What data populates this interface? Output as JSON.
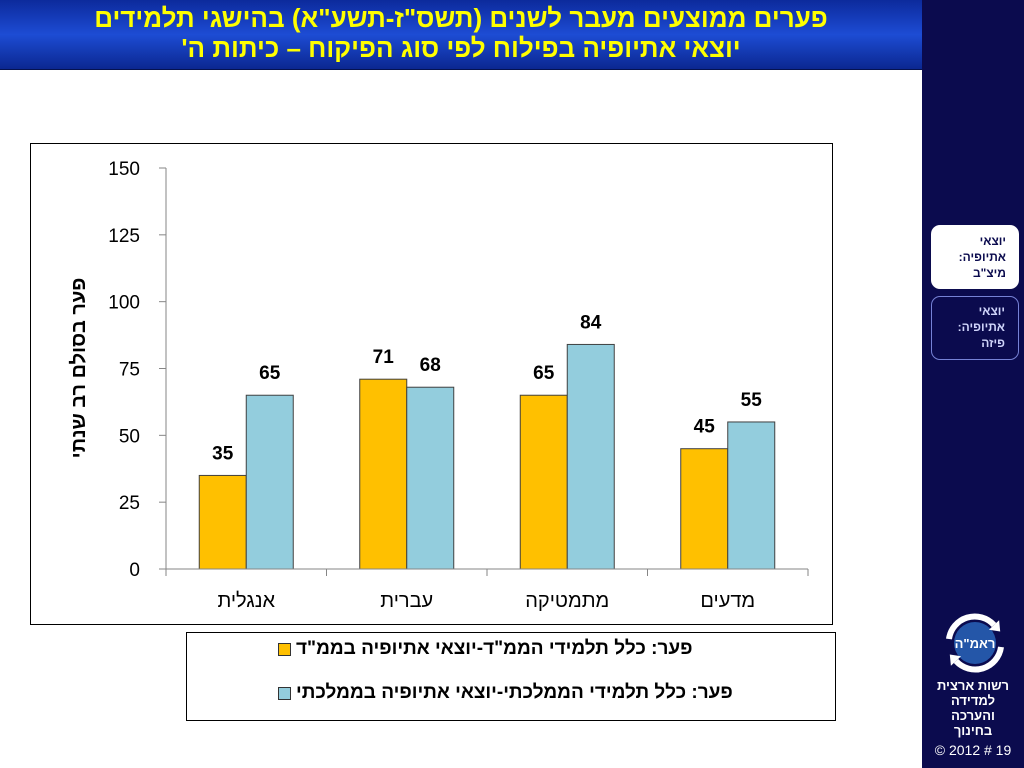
{
  "slide": {
    "title_lines": [
      "פערים ממוצעים מעבר לשנים (תשס\"ז-תשע\"א) בהישגי תלמידים",
      "יוצאי אתיופיה בפילוח לפי סוג הפיקוח – כיתות ה'"
    ],
    "colors": {
      "title_text": "#ffff00",
      "title_bg": "#1d4cd4",
      "sidebar_bg": "#0b0b4e"
    }
  },
  "sidebar": {
    "tabs": [
      {
        "lines": [
          "יוצאי",
          "אתיופיה:",
          "מיצ\"ב"
        ],
        "selected": true
      },
      {
        "lines": [
          "יוצאי",
          "אתיופיה:",
          "פיזה"
        ],
        "selected": false
      }
    ],
    "logo": {
      "text": "ראמ\"ה",
      "icon": "circular-arrows-logo"
    },
    "org_lines": [
      "רשות ארצית",
      "למדידה",
      "והערכה",
      "בחינוך"
    ],
    "footer": "© 2012 # 19"
  },
  "chart_data": {
    "type": "bar",
    "categories": [
      "אנגלית",
      "עברית",
      "מתמטיקה",
      "מדעים"
    ],
    "series": [
      {
        "name": "פער: כלל תלמידי הממ\"ד-יוצאי אתיופיה בממ\"ד",
        "values": [
          35,
          71,
          65,
          45
        ],
        "color": "#ffc000"
      },
      {
        "name": "פער: כלל תלמידי הממלכתי-יוצאי אתיופיה בממלכתי",
        "values": [
          65,
          68,
          84,
          55
        ],
        "color": "#93cddd"
      }
    ],
    "ylabel": "פער בסולם רב שנתי",
    "ylim": [
      0,
      150
    ],
    "yticks": [
      0,
      25,
      50,
      75,
      100,
      125,
      150
    ],
    "data_labels": true,
    "grid": false,
    "legend": "bottom"
  }
}
